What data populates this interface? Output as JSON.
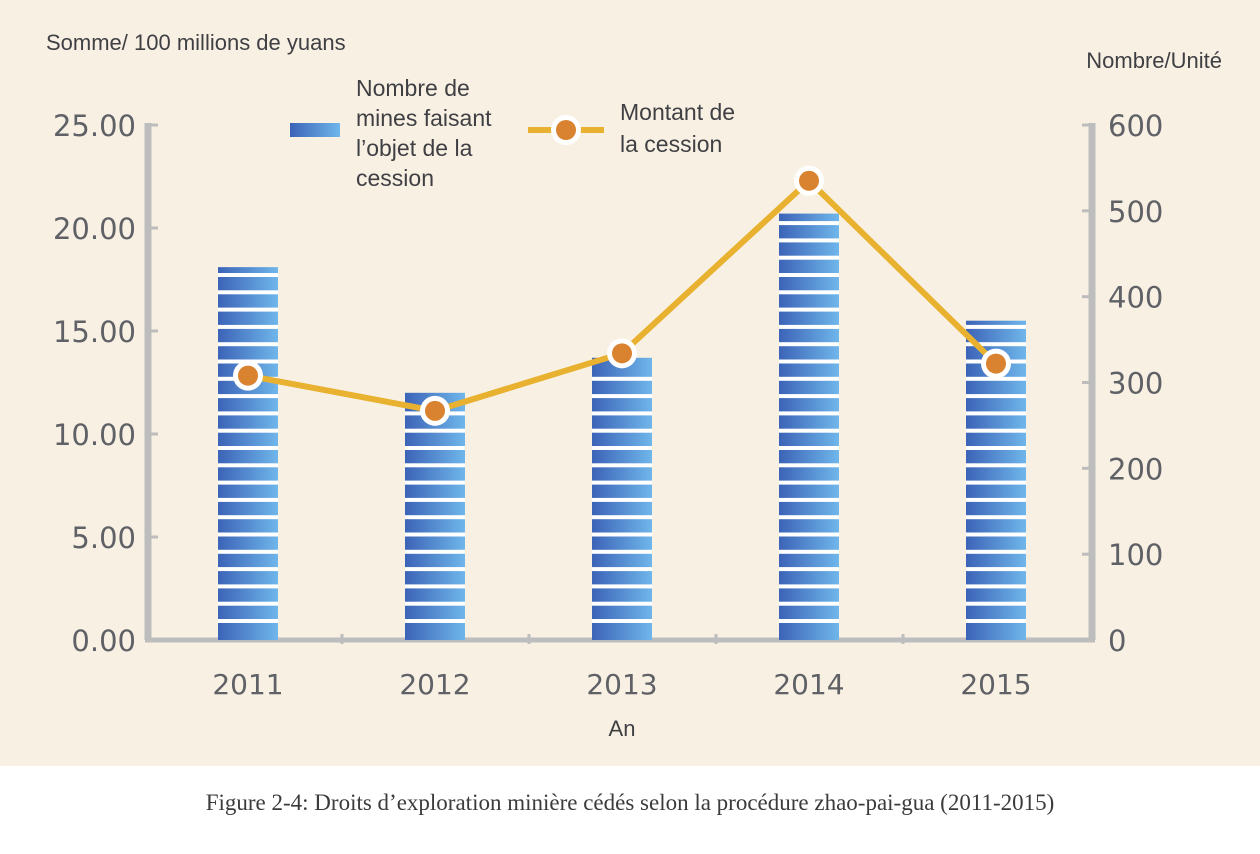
{
  "chart_data": {
    "type": "bar",
    "categories": [
      "2011",
      "2012",
      "2013",
      "2014",
      "2015"
    ],
    "series": [
      {
        "name": "Nombre de mines faisant l’objet de la cession",
        "type": "bar",
        "axis": "left",
        "values": [
          18.1,
          12.0,
          13.7,
          20.7,
          15.5
        ]
      },
      {
        "name": "Montant de la cession",
        "type": "line",
        "axis": "right",
        "values": [
          308,
          267,
          334,
          535,
          322
        ]
      }
    ],
    "xlabel": "An",
    "ylabel_left": "Somme/ 100 millions de yuans",
    "ylabel_right": "Nombre/Unité",
    "ylim_left": [
      0,
      25
    ],
    "ylim_right": [
      0,
      600
    ],
    "yticks_left": [
      "0.00",
      "5.00",
      "10.00",
      "15.00",
      "20.00",
      "25.00"
    ],
    "yticks_right": [
      "0",
      "100",
      "200",
      "300",
      "400",
      "500",
      "600"
    ],
    "legend": {
      "placement": "top-center",
      "bar_lines": [
        "Nombre de",
        "mines faisant",
        "l’objet de la",
        "cession"
      ],
      "line_lines": [
        "Montant de",
        "la cession"
      ]
    },
    "grid": false,
    "colors": {
      "bar_light": "#6fb6ea",
      "bar_dark": "#3c63b7",
      "stripe": "#ffffff",
      "line": "#e8b12f",
      "marker": "#d9822f",
      "axis": "#bdbdbd",
      "background": "#f8f1e3"
    }
  },
  "caption": "Figure 2-4: Droits d’exploration minière cédés selon la procédure zhao-pai-gua (2011-2015)"
}
